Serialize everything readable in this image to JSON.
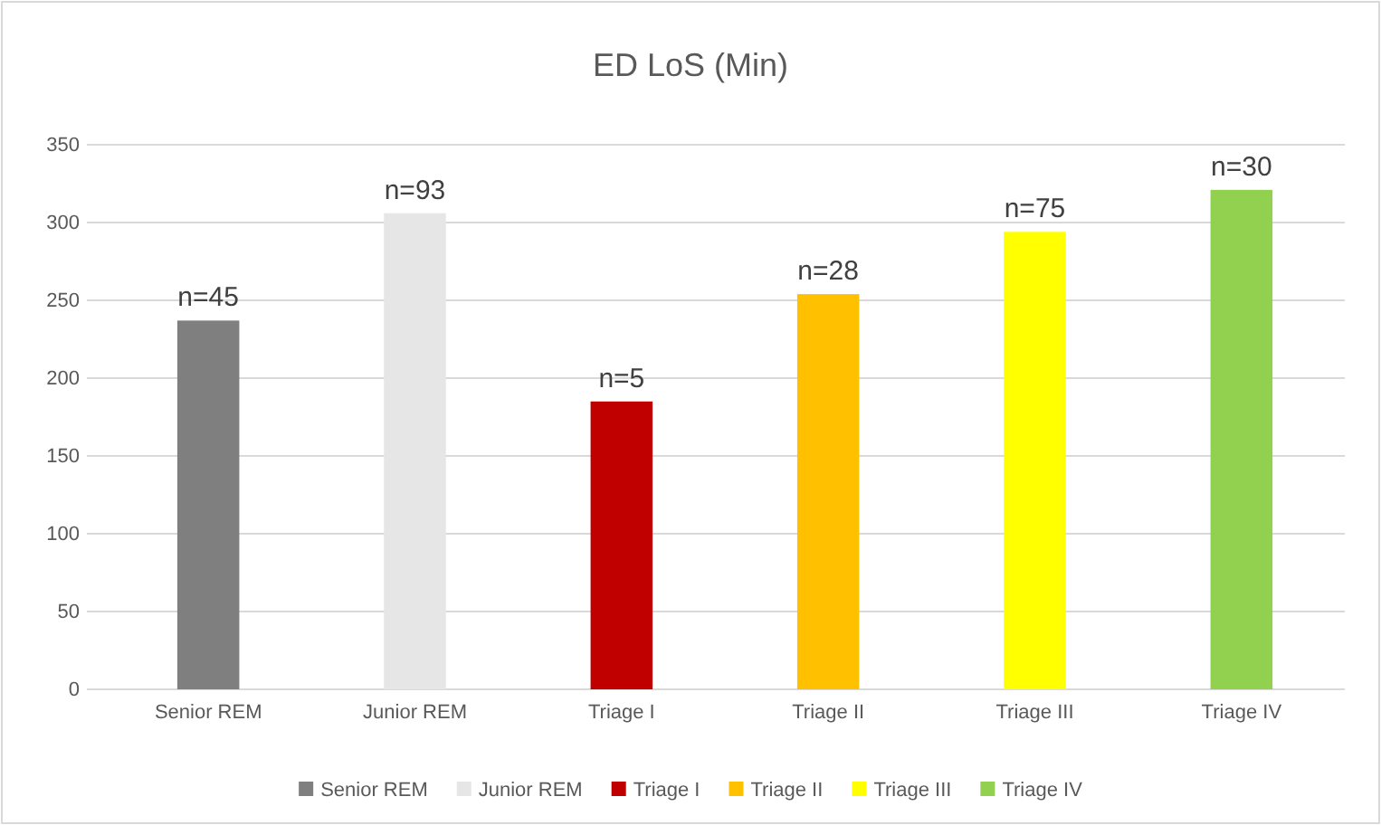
{
  "chart_data": {
    "type": "bar",
    "title": "ED LoS (Min)",
    "categories": [
      "Senior REM",
      "Junior REM",
      "Triage I",
      "Triage II",
      "Triage III",
      "Triage IV"
    ],
    "series": [
      {
        "name": "Senior REM",
        "color": "#7f7f7f",
        "values": [
          237,
          null,
          null,
          null,
          null,
          null
        ]
      },
      {
        "name": "Junior REM",
        "color": "#e6e6e6",
        "values": [
          null,
          306,
          null,
          null,
          null,
          null
        ]
      },
      {
        "name": "Triage I",
        "color": "#c00000",
        "values": [
          null,
          null,
          185,
          null,
          null,
          null
        ]
      },
      {
        "name": "Triage II",
        "color": "#ffc000",
        "values": [
          null,
          null,
          null,
          254,
          null,
          null
        ]
      },
      {
        "name": "Triage III",
        "color": "#ffff00",
        "values": [
          null,
          null,
          null,
          null,
          294,
          null
        ]
      },
      {
        "name": "Triage IV",
        "color": "#92d050",
        "values": [
          null,
          null,
          null,
          null,
          null,
          321
        ]
      }
    ],
    "annotations": [
      {
        "text": "n=45",
        "x": "Senior REM",
        "y": 237
      },
      {
        "text": "n=93",
        "x": "Junior REM",
        "y": 306
      },
      {
        "text": "n=5",
        "x": "Triage I",
        "y": 185
      },
      {
        "text": "n=28",
        "x": "Triage II",
        "y": 254
      },
      {
        "text": "n=75",
        "x": "Triage III",
        "y": 294
      },
      {
        "text": "n=30",
        "x": "Triage IV",
        "y": 321
      }
    ],
    "ylim": [
      0,
      350
    ],
    "yticks": [
      0,
      50,
      100,
      150,
      200,
      250,
      300,
      350
    ],
    "grid": "y",
    "legend": "bottom"
  }
}
